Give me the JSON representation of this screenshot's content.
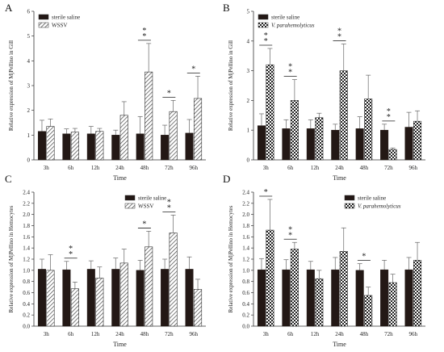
{
  "figure": {
    "xlabel": "Time",
    "categories": [
      "3h",
      "6h",
      "12h",
      "24h",
      "48h",
      "72h",
      "96h"
    ]
  },
  "colors": {
    "control": "#231815",
    "axis": "#333333",
    "hatch": "#444444",
    "star": "#222222"
  },
  "chart_data": [
    {
      "panel_label": "A",
      "type": "bar",
      "ylabel": "Relative expression of MjPellino in Gill",
      "xlabel": "Time",
      "ylim": [
        0,
        6
      ],
      "yticks": [
        "0",
        "1",
        "2",
        "3",
        "4",
        "5",
        "6"
      ],
      "categories": [
        "3h",
        "6h",
        "12h",
        "24h",
        "48h",
        "72h",
        "96h"
      ],
      "legend_position": "top-left",
      "treatment_pattern": "diagonal-hatch",
      "series": [
        {
          "name": "sterile saline",
          "values": [
            1.15,
            1.05,
            1.05,
            1.0,
            1.05,
            1.0,
            1.08
          ],
          "errors": [
            0.45,
            0.2,
            0.3,
            0.2,
            0.7,
            0.4,
            0.55
          ]
        },
        {
          "name": "WSSV",
          "values": [
            1.35,
            1.12,
            1.15,
            1.8,
            3.55,
            1.95,
            2.48
          ],
          "errors": [
            0.3,
            0.15,
            0.12,
            0.55,
            1.15,
            0.45,
            0.9
          ]
        }
      ],
      "annotations": [
        {
          "category": "48h",
          "label": "**"
        },
        {
          "category": "72h",
          "label": "*"
        },
        {
          "category": "96h",
          "label": "*"
        }
      ]
    },
    {
      "panel_label": "B",
      "type": "bar",
      "ylabel": "Relative expression of MjPellino in Gill",
      "xlabel": "Time",
      "ylim": [
        0,
        5
      ],
      "yticks": [
        "0",
        "1",
        "2",
        "3",
        "4",
        "5"
      ],
      "categories": [
        "3h",
        "6h",
        "12h",
        "24h",
        "48h",
        "72h",
        "96h"
      ],
      "legend_position": "top-left",
      "treatment_pattern": "checker",
      "series": [
        {
          "name": "sterile saline",
          "values": [
            1.15,
            1.05,
            1.05,
            1.0,
            1.05,
            1.0,
            1.1
          ],
          "errors": [
            0.4,
            0.3,
            0.3,
            0.2,
            0.4,
            0.2,
            0.5
          ]
        },
        {
          "name": "V. parahemolyticus",
          "values": [
            3.2,
            2.0,
            1.42,
            3.0,
            2.05,
            0.35,
            1.3
          ],
          "errors": [
            0.55,
            0.7,
            0.15,
            0.9,
            0.8,
            0.05,
            0.35
          ]
        }
      ],
      "annotations": [
        {
          "category": "3h",
          "label": "**"
        },
        {
          "category": "6h",
          "label": "**"
        },
        {
          "category": "24h",
          "label": "**"
        },
        {
          "category": "72h",
          "label": "**"
        }
      ]
    },
    {
      "panel_label": "C",
      "type": "bar",
      "ylabel": "Relative expression of MjPellino in Hemocytes",
      "xlabel": "Time",
      "ylim": [
        0,
        2.4
      ],
      "yticks": [
        "0.0",
        "0.2",
        "0.4",
        "0.6",
        "0.8",
        "1.0",
        "1.2",
        "1.4",
        "1.6",
        "1.8",
        "2.0",
        "2.2",
        "2.4"
      ],
      "categories": [
        "3h",
        "6h",
        "12h",
        "24h",
        "48h",
        "72h",
        "96h"
      ],
      "legend_position": "top-right",
      "treatment_pattern": "diagonal-hatch",
      "series": [
        {
          "name": "sterile saline",
          "values": [
            1.02,
            1.01,
            1.02,
            1.02,
            1.0,
            1.02,
            1.02
          ],
          "errors": [
            0.18,
            0.15,
            0.15,
            0.2,
            0.18,
            0.18,
            0.22
          ]
        },
        {
          "name": "WSSV",
          "values": [
            1.0,
            0.67,
            0.86,
            1.13,
            1.42,
            1.67,
            0.66
          ],
          "errors": [
            0.28,
            0.12,
            0.2,
            0.25,
            0.28,
            0.32,
            0.18
          ]
        }
      ],
      "annotations": [
        {
          "category": "6h",
          "label": "**"
        },
        {
          "category": "48h",
          "label": "*"
        },
        {
          "category": "72h",
          "label": "**"
        }
      ]
    },
    {
      "panel_label": "D",
      "type": "bar",
      "ylabel": "Relative expression of MjPellino in Hemocytes",
      "xlabel": "Time",
      "ylim": [
        0,
        2.4
      ],
      "yticks": [
        "0.0",
        "0.2",
        "0.4",
        "0.6",
        "0.8",
        "1.0",
        "1.2",
        "1.4",
        "1.6",
        "1.8",
        "2.0",
        "2.2",
        "2.4"
      ],
      "categories": [
        "3h",
        "6h",
        "12h",
        "24h",
        "48h",
        "72h",
        "96h"
      ],
      "legend_position": "top-right",
      "treatment_pattern": "checker",
      "series": [
        {
          "name": "sterile saline",
          "values": [
            1.01,
            1.01,
            1.01,
            1.01,
            1.0,
            1.01,
            1.01
          ],
          "errors": [
            0.2,
            0.18,
            0.15,
            0.22,
            0.12,
            0.17,
            0.22
          ]
        },
        {
          "name": "V. parahemolyticus",
          "values": [
            1.72,
            1.38,
            0.85,
            1.34,
            0.55,
            0.78,
            1.18
          ],
          "errors": [
            0.55,
            0.12,
            0.15,
            0.42,
            0.15,
            0.15,
            0.32
          ]
        }
      ],
      "annotations": [
        {
          "category": "3h",
          "label": "*"
        },
        {
          "category": "6h",
          "label": "**"
        },
        {
          "category": "48h",
          "label": "*"
        }
      ]
    }
  ]
}
